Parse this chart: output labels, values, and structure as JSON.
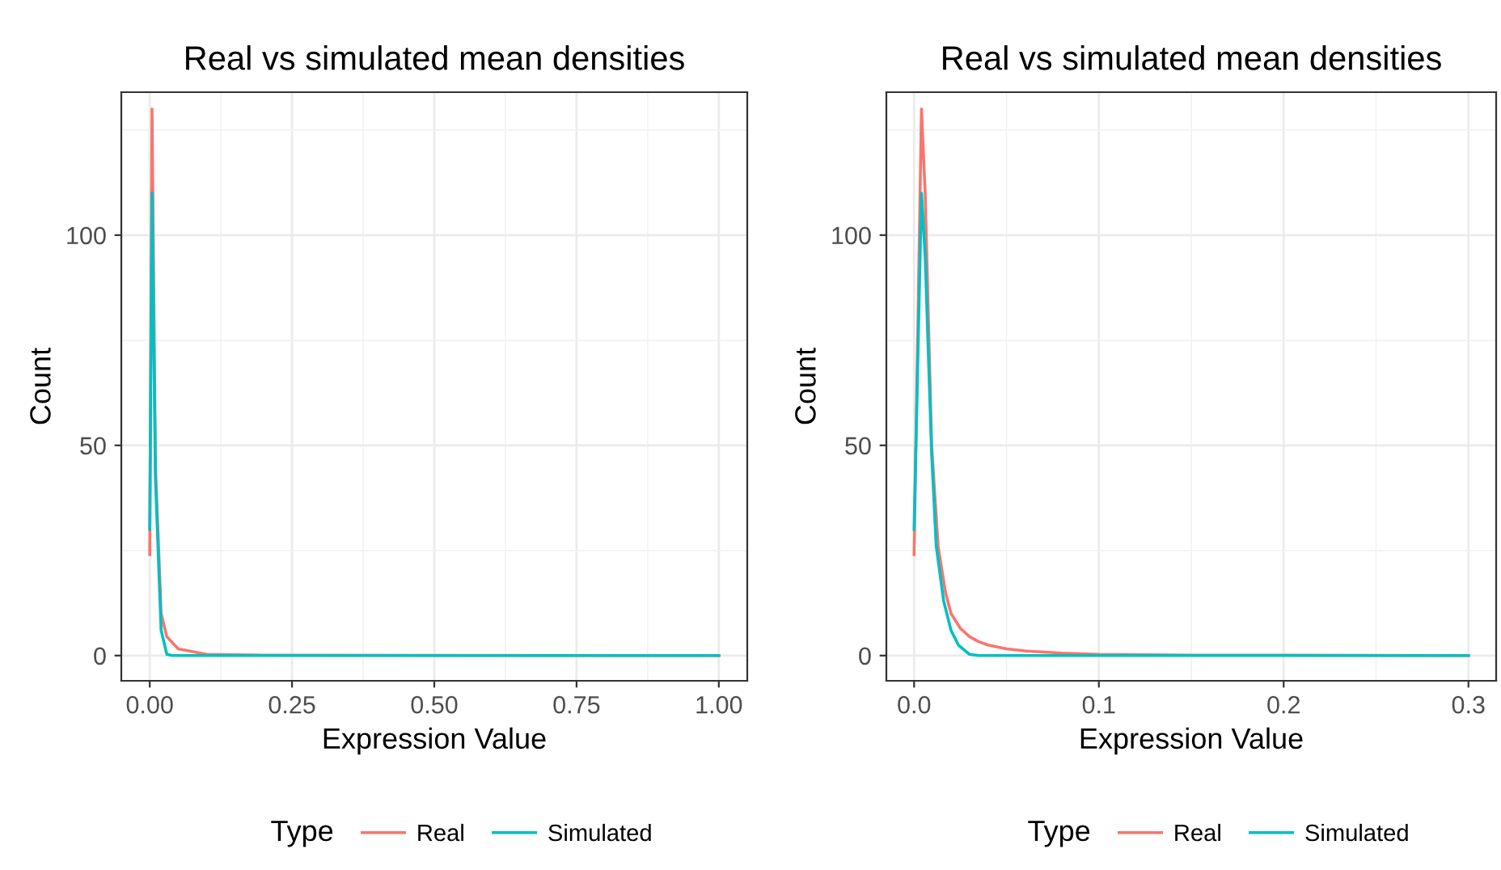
{
  "chart_data": [
    {
      "type": "line",
      "title": "Real vs simulated mean densities",
      "xlabel": "Expression Value",
      "ylabel": "Count",
      "legend_title": "Type",
      "legend": "bottom",
      "grid": true,
      "xlim": [
        -0.05,
        1.05
      ],
      "xticks": [
        {
          "value": 0,
          "label": "0.00"
        },
        0.25,
        {
          "value": 0.5,
          "label": "0.50"
        },
        0.75,
        {
          "value": 1,
          "label": "1.00"
        }
      ],
      "ylim": [
        -6,
        134
      ],
      "yticks": [
        0,
        50,
        100
      ],
      "series": [
        {
          "name": "Real",
          "color": "#f8766d",
          "x": [
            0,
            0.004,
            0.01,
            0.02,
            0.03,
            0.05,
            0.1,
            0.2,
            1
          ],
          "values": [
            24,
            130,
            45,
            10,
            4.5,
            1.6,
            0.3,
            0.1,
            0
          ]
        },
        {
          "name": "Simulated",
          "color": "#00bfc4",
          "x": [
            0,
            0.004,
            0.01,
            0.02,
            0.03,
            0.04,
            1
          ],
          "values": [
            30,
            110,
            42,
            6,
            0.3,
            0,
            0
          ]
        }
      ]
    },
    {
      "type": "line",
      "title": "Real vs simulated mean densities",
      "xlabel": "Expression Value",
      "ylabel": "Count",
      "legend_title": "Type",
      "legend": "bottom",
      "grid": true,
      "xlim": [
        -0.015,
        0.315
      ],
      "xticks": [
        {
          "value": 0,
          "label": "0.0"
        },
        0.1,
        0.2,
        0.3
      ],
      "ylim": [
        -6,
        134
      ],
      "yticks": [
        0,
        50,
        100
      ],
      "series": [
        {
          "name": "Real",
          "color": "#f8766d",
          "x": [
            0,
            0.004,
            0.006,
            0.0095,
            0.013,
            0.017,
            0.02,
            0.025,
            0.03,
            0.035,
            0.04,
            0.05,
            0.06,
            0.08,
            0.1,
            0.15,
            0.2,
            0.3
          ],
          "values": [
            24,
            130,
            110,
            50,
            26,
            15,
            10,
            6.5,
            4.5,
            3.3,
            2.5,
            1.6,
            1.1,
            0.6,
            0.3,
            0.1,
            0.1,
            0
          ]
        },
        {
          "name": "Simulated",
          "color": "#00bfc4",
          "x": [
            0,
            0.004,
            0.006,
            0.0095,
            0.012,
            0.016,
            0.02,
            0.024,
            0.03,
            0.035,
            0.3
          ],
          "values": [
            30,
            110,
            95,
            48,
            26,
            13,
            6,
            2.5,
            0.3,
            0,
            0
          ]
        }
      ]
    }
  ]
}
